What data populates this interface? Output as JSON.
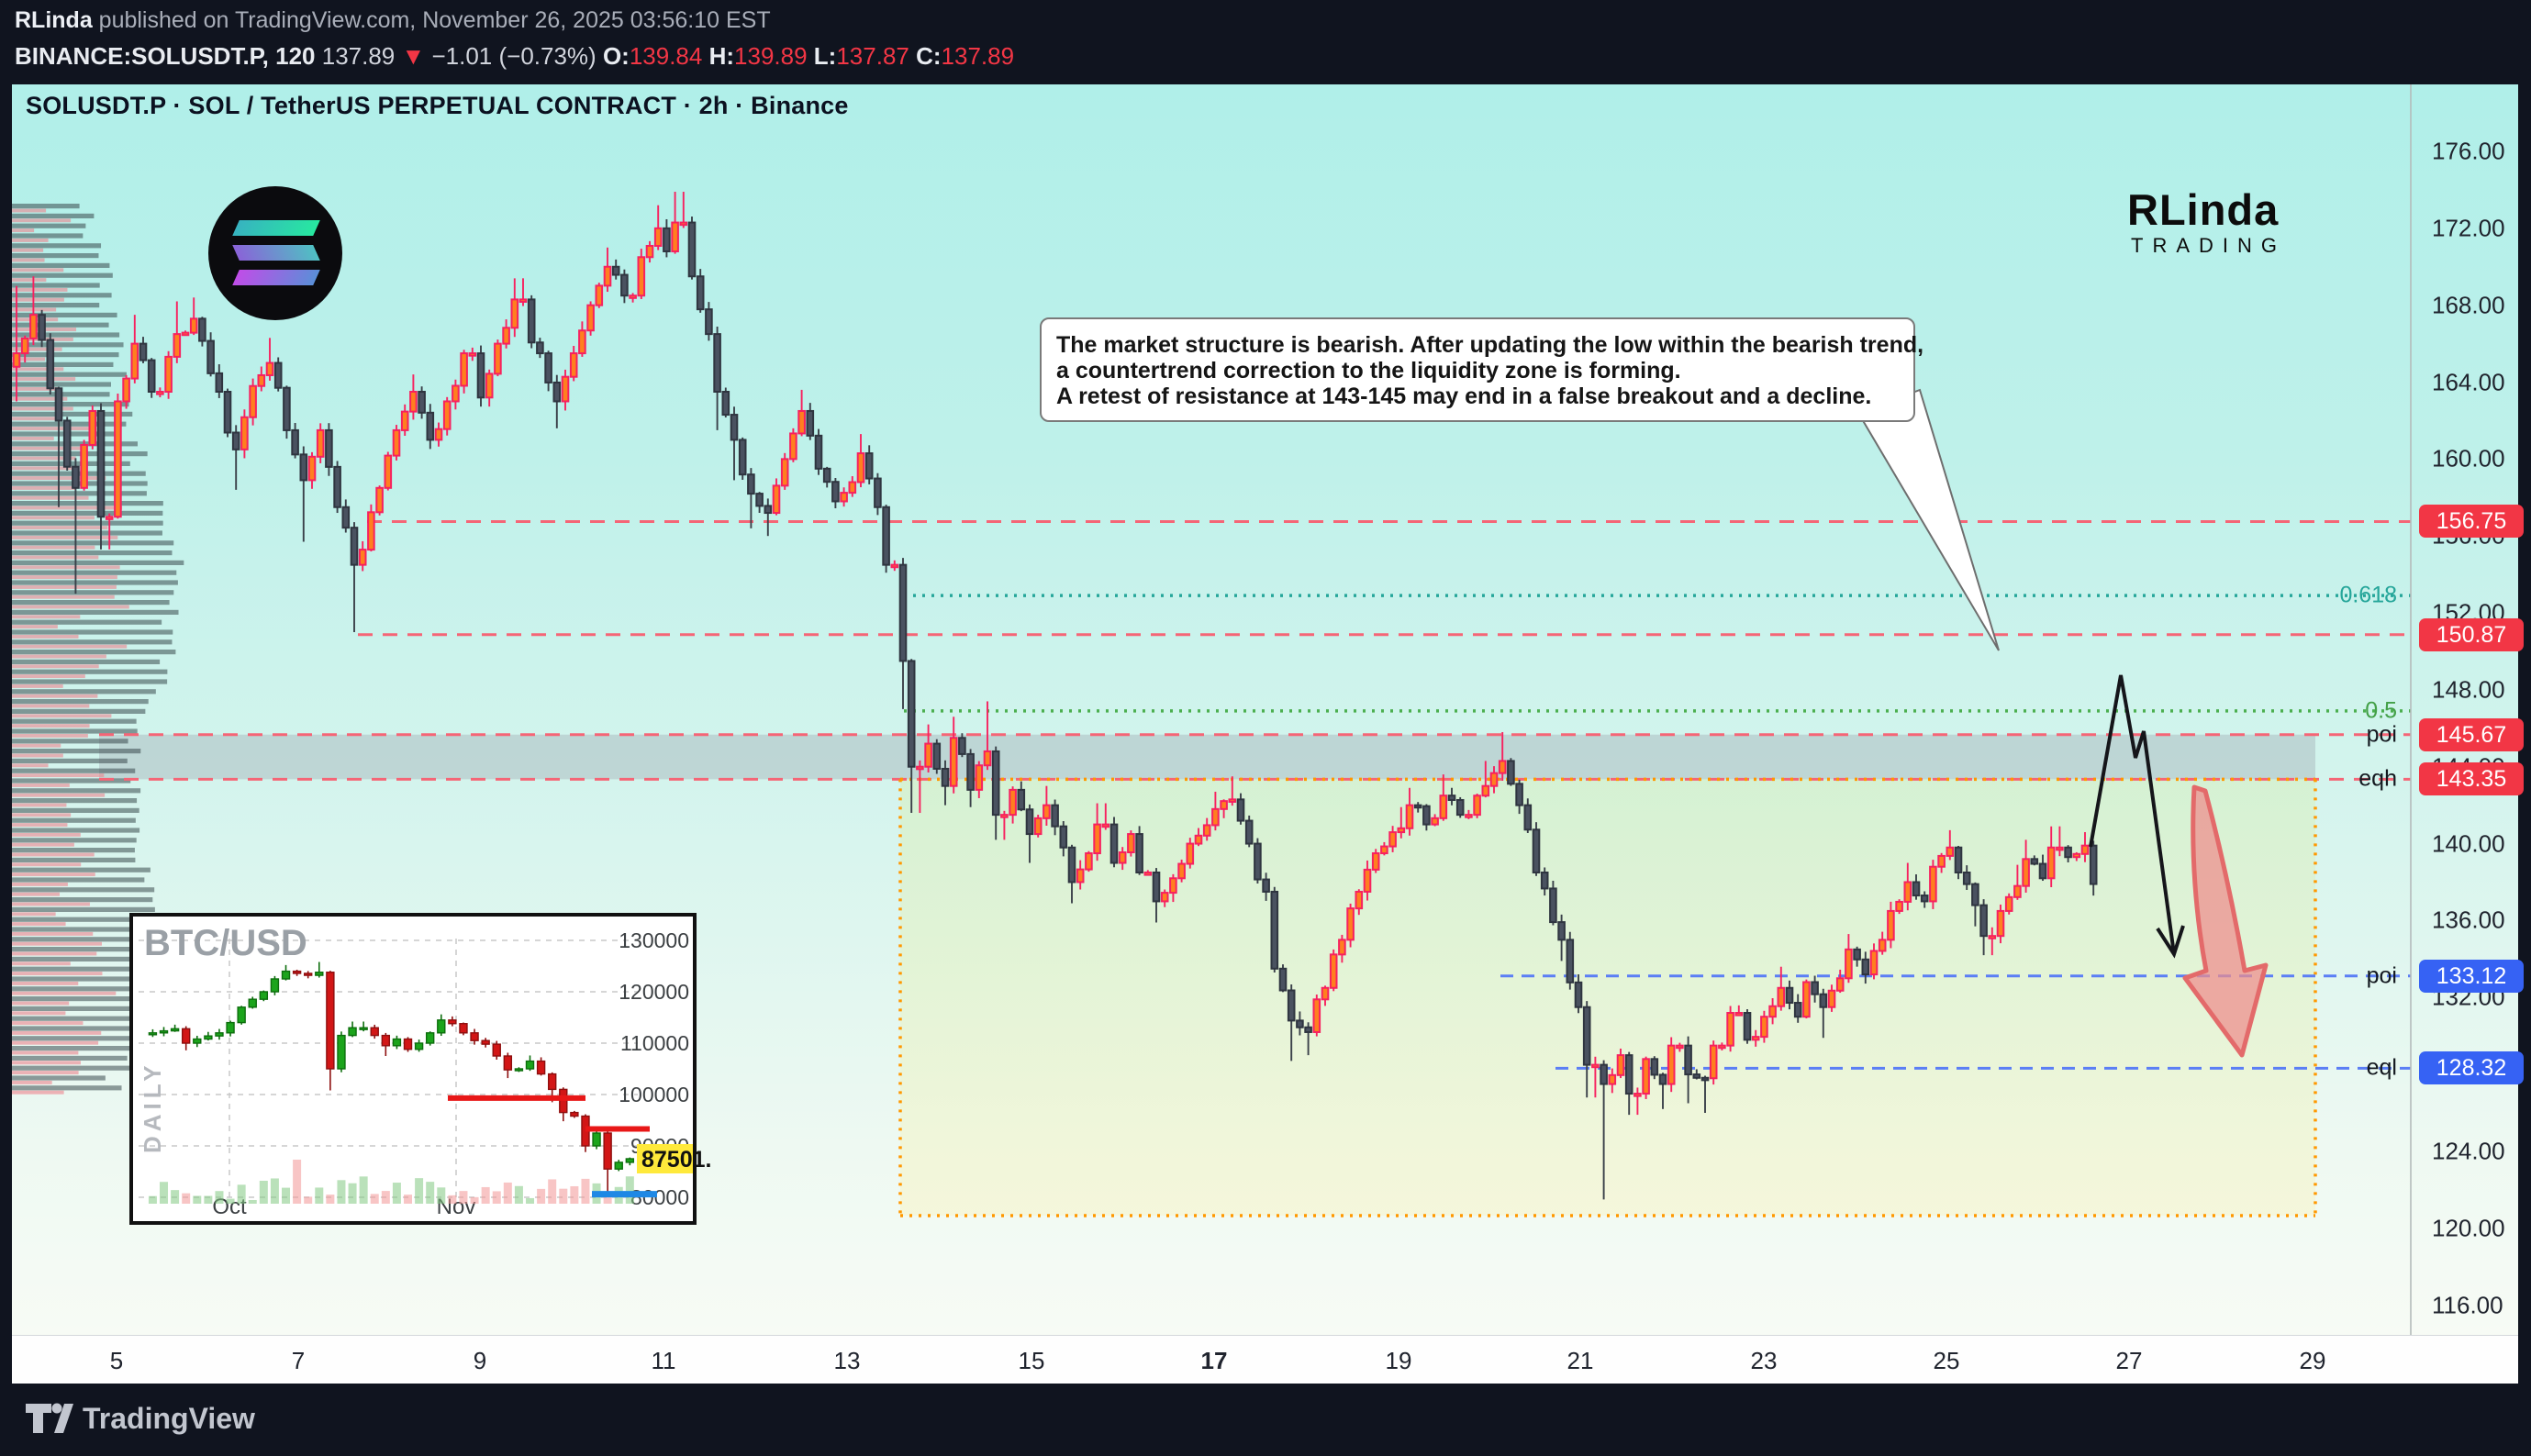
{
  "header": {
    "author": "RLinda",
    "publish_text": " published on TradingView.com, November 26, 2025 03:56:10 EST",
    "symbol": "BINANCE:SOLUSDT.P, 120",
    "last": "137.89",
    "down_arrow": "▼",
    "change": "−1.01 (−0.73%)",
    "o_label": "O:",
    "o": "139.84",
    "h_label": "H:",
    "h": "139.89",
    "l_label": "L:",
    "l": "137.87",
    "c_label": "C:",
    "c": "137.89"
  },
  "chart_title": "SOLUSDT.P · SOL / TetherUS PERPETUAL CONTRACT · 2h · Binance",
  "watermark": {
    "line1": "RLinda",
    "line2": "TRADING"
  },
  "annotation": {
    "line1": "The market structure is bearish. After updating the low within the bearish trend,",
    "line2": "a countertrend correction to the liquidity zone is forming.",
    "line3": "A retest of resistance at 143-145 may end in a false breakout and a decline."
  },
  "footer": {
    "brand": "TradingView"
  },
  "price_axis": {
    "ticks": [
      176,
      172,
      168,
      164,
      160,
      156,
      152,
      148,
      144,
      140,
      136,
      132,
      128,
      124,
      120,
      116
    ],
    "badges": [
      {
        "text": "156.75",
        "price": 156.75,
        "color": "#f23645"
      },
      {
        "text": "150.87",
        "price": 150.87,
        "color": "#f23645"
      },
      {
        "text": "145.67",
        "price": 145.67,
        "color": "#f23645"
      },
      {
        "text": "143.35",
        "price": 143.35,
        "color": "#f23645"
      },
      {
        "text": "133.12",
        "price": 133.12,
        "color": "#3662f4"
      },
      {
        "text": "128.32",
        "price": 128.32,
        "color": "#3662f4"
      }
    ],
    "side_labels": [
      {
        "text": "0.618",
        "price": 152.9,
        "color": "#26a69a"
      },
      {
        "text": "0.5",
        "price": 146.9,
        "color": "#43a047"
      },
      {
        "text": "poi",
        "price": 145.67,
        "color": "#13181f"
      },
      {
        "text": "eqh",
        "price": 143.35,
        "color": "#13181f"
      },
      {
        "text": "poi",
        "price": 133.12,
        "color": "#13181f"
      },
      {
        "text": "eql",
        "price": 128.32,
        "color": "#13181f"
      }
    ]
  },
  "time_axis": {
    "labels": [
      [
        "5",
        127
      ],
      [
        "7",
        325
      ],
      [
        "9",
        523
      ],
      [
        "11",
        723
      ],
      [
        "13",
        923
      ],
      [
        "15",
        1124
      ],
      [
        "17",
        1323
      ],
      [
        "19",
        1524
      ],
      [
        "21",
        1722
      ],
      [
        "23",
        1922
      ],
      [
        "25",
        2121
      ],
      [
        "27",
        2320
      ],
      [
        "29",
        2520
      ]
    ],
    "bold_label": "17"
  },
  "chart_data": {
    "type": "candlestick",
    "symbol": "SOLUSDT.P",
    "exchange": "Binance",
    "timeframe": "2h",
    "title": "SOLUSDT.P · SOL / TetherUS PERPETUAL CONTRACT · 2h · Binance",
    "ylim": [
      113.5,
      177.5
    ],
    "y_ticks": [
      176,
      172,
      168,
      164,
      160,
      156,
      152,
      148,
      144,
      140,
      136,
      132,
      128,
      124,
      120,
      116
    ],
    "x_tick_days": [
      5,
      7,
      9,
      11,
      13,
      15,
      17,
      19,
      21,
      23,
      25,
      27,
      29
    ],
    "last_close": 137.89,
    "levels": [
      {
        "name": "resistance",
        "price": 156.75
      },
      {
        "name": "resistance",
        "price": 150.87
      },
      {
        "name": "fib-0.618",
        "price": 152.9
      },
      {
        "name": "fib-0.5",
        "price": 146.9
      },
      {
        "name": "poi-upper",
        "price": 145.67
      },
      {
        "name": "eqh",
        "price": 143.35
      },
      {
        "name": "poi-lower",
        "price": 133.12
      },
      {
        "name": "eql",
        "price": 128.32
      }
    ],
    "zones": [
      {
        "name": "supply-band",
        "from": 145.67,
        "to": 143.35
      },
      {
        "name": "liquidity-box",
        "from": 143.35,
        "to": 120.7
      }
    ],
    "price_path": [
      [
        18,
        165.5,
        169.0,
        163.0
      ],
      [
        40,
        167.5,
        169.5,
        null
      ],
      [
        60,
        162.0,
        null,
        157.5
      ],
      [
        80,
        158.5,
        null,
        153.0
      ],
      [
        100,
        162.5,
        null,
        null
      ],
      [
        115,
        157.0,
        null,
        155.3
      ],
      [
        130,
        163.0,
        null,
        null
      ],
      [
        150,
        166.0,
        167.5,
        null
      ],
      [
        170,
        163.5,
        null,
        null
      ],
      [
        195,
        166.5,
        168.2,
        null
      ],
      [
        215,
        167.3,
        168.4,
        null
      ],
      [
        235,
        163.5,
        null,
        null
      ],
      [
        255,
        160.5,
        null,
        158.4
      ],
      [
        275,
        163.8,
        null,
        null
      ],
      [
        295,
        165.0,
        166.3,
        null
      ],
      [
        315,
        161.5,
        null,
        null
      ],
      [
        330,
        158.9,
        null,
        155.7
      ],
      [
        350,
        161.5,
        null,
        null
      ],
      [
        370,
        157.5,
        null,
        null
      ],
      [
        390,
        154.5,
        null,
        151.0
      ],
      [
        410,
        158.5,
        null,
        null
      ],
      [
        430,
        161.5,
        null,
        null
      ],
      [
        450,
        163.5,
        164.4,
        null
      ],
      [
        470,
        161.0,
        null,
        null
      ],
      [
        490,
        163.0,
        null,
        null
      ],
      [
        510,
        165.5,
        null,
        null
      ],
      [
        525,
        163.2,
        null,
        null
      ],
      [
        545,
        166.0,
        null,
        null
      ],
      [
        565,
        168.3,
        169.4,
        null
      ],
      [
        585,
        165.5,
        null,
        null
      ],
      [
        605,
        163.0,
        null,
        161.6
      ],
      [
        625,
        165.5,
        null,
        null
      ],
      [
        645,
        168.0,
        null,
        null
      ],
      [
        665,
        170.0,
        171.0,
        null
      ],
      [
        685,
        168.5,
        null,
        null
      ],
      [
        700,
        170.5,
        null,
        null
      ],
      [
        715,
        172.0,
        173.2,
        null
      ],
      [
        728,
        170.8,
        null,
        null
      ],
      [
        740,
        172.3,
        173.9,
        null
      ],
      [
        755,
        169.5,
        null,
        null
      ],
      [
        770,
        166.5,
        null,
        null
      ],
      [
        785,
        163.5,
        null,
        161.5
      ],
      [
        800,
        161.0,
        null,
        158.9
      ],
      [
        815,
        158.2,
        null,
        156.4
      ],
      [
        835,
        157.2,
        null,
        156.0
      ],
      [
        855,
        160.0,
        null,
        null
      ],
      [
        875,
        162.5,
        163.6,
        null
      ],
      [
        895,
        159.5,
        null,
        null
      ],
      [
        912,
        157.8,
        null,
        null
      ],
      [
        926,
        158.8,
        null,
        null
      ],
      [
        940,
        160.3,
        161.3,
        null
      ],
      [
        955,
        157.5,
        null,
        null
      ],
      [
        970,
        154.5,
        null,
        null
      ],
      [
        984,
        149.5,
        null,
        147.0
      ],
      [
        998,
        144.0,
        null,
        141.6
      ],
      [
        1012,
        145.2,
        146.2,
        null
      ],
      [
        1026,
        143.0,
        null,
        142.0
      ],
      [
        1042,
        145.5,
        146.6,
        null
      ],
      [
        1058,
        142.8,
        null,
        141.9
      ],
      [
        1074,
        144.8,
        147.4,
        null
      ],
      [
        1090,
        141.5,
        null,
        140.2
      ],
      [
        1106,
        142.8,
        null,
        null
      ],
      [
        1124,
        140.5,
        null,
        139.0
      ],
      [
        1140,
        142.0,
        143.0,
        null
      ],
      [
        1156,
        139.8,
        null,
        null
      ],
      [
        1170,
        138.0,
        null,
        136.9
      ],
      [
        1186,
        139.5,
        null,
        null
      ],
      [
        1200,
        141.0,
        142.1,
        null
      ],
      [
        1216,
        139.0,
        null,
        null
      ],
      [
        1232,
        140.5,
        null,
        null
      ],
      [
        1246,
        138.5,
        null,
        null
      ],
      [
        1262,
        137.0,
        null,
        135.9
      ],
      [
        1280,
        138.2,
        null,
        null
      ],
      [
        1300,
        140.0,
        null,
        null
      ],
      [
        1323,
        141.8,
        142.7,
        null
      ],
      [
        1344,
        142.3,
        143.5,
        null
      ],
      [
        1360,
        140.0,
        null,
        null
      ],
      [
        1376,
        137.5,
        null,
        null
      ],
      [
        1392,
        133.5,
        null,
        null
      ],
      [
        1406,
        130.8,
        null,
        128.7
      ],
      [
        1422,
        130.2,
        null,
        129.0
      ],
      [
        1440,
        132.5,
        null,
        null
      ],
      [
        1460,
        135.0,
        null,
        null
      ],
      [
        1480,
        137.5,
        null,
        null
      ],
      [
        1500,
        139.5,
        null,
        null
      ],
      [
        1524,
        140.8,
        141.9,
        null
      ],
      [
        1540,
        142.0,
        142.9,
        null
      ],
      [
        1558,
        141.0,
        null,
        null
      ],
      [
        1576,
        142.5,
        143.6,
        null
      ],
      [
        1596,
        141.5,
        null,
        null
      ],
      [
        1616,
        143.0,
        144.3,
        null
      ],
      [
        1638,
        144.3,
        145.8,
        null
      ],
      [
        1658,
        142.0,
        null,
        null
      ],
      [
        1678,
        138.5,
        null,
        null
      ],
      [
        1698,
        135.0,
        null,
        133.9
      ],
      [
        1718,
        131.5,
        null,
        null
      ],
      [
        1734,
        128.5,
        null,
        126.8
      ],
      [
        1750,
        127.5,
        null,
        121.5
      ],
      [
        1766,
        129.0,
        null,
        null
      ],
      [
        1780,
        127.0,
        null,
        125.9
      ],
      [
        1796,
        128.8,
        null,
        null
      ],
      [
        1810,
        127.5,
        null,
        126.2
      ],
      [
        1826,
        129.5,
        null,
        null
      ],
      [
        1840,
        128.0,
        null,
        126.5
      ],
      [
        1856,
        127.8,
        null,
        126.0
      ],
      [
        1872,
        129.5,
        null,
        null
      ],
      [
        1890,
        131.2,
        null,
        null
      ],
      [
        1908,
        129.8,
        null,
        null
      ],
      [
        1924,
        131.0,
        null,
        null
      ],
      [
        1940,
        132.5,
        133.6,
        null
      ],
      [
        1956,
        131.0,
        null,
        null
      ],
      [
        1972,
        132.8,
        null,
        null
      ],
      [
        1986,
        131.5,
        null,
        129.9
      ],
      [
        2002,
        133.0,
        null,
        null
      ],
      [
        2016,
        134.5,
        135.3,
        null
      ],
      [
        2032,
        133.2,
        null,
        null
      ],
      [
        2048,
        135.0,
        null,
        null
      ],
      [
        2064,
        136.5,
        null,
        null
      ],
      [
        2078,
        138.0,
        139.0,
        null
      ],
      [
        2094,
        137.0,
        null,
        null
      ],
      [
        2108,
        138.8,
        null,
        null
      ],
      [
        2122,
        139.8,
        140.7,
        null
      ],
      [
        2136,
        138.5,
        null,
        null
      ],
      [
        2152,
        136.8,
        null,
        135.7
      ],
      [
        2166,
        135.2,
        null,
        134.2
      ],
      [
        2180,
        136.5,
        null,
        null
      ],
      [
        2196,
        137.8,
        138.9,
        null
      ],
      [
        2210,
        139.2,
        140.2,
        null
      ],
      [
        2226,
        138.2,
        null,
        null
      ],
      [
        2240,
        139.8,
        140.9,
        null
      ],
      [
        2256,
        139.3,
        null,
        null
      ],
      [
        2270,
        139.9,
        140.6,
        null
      ],
      [
        2285,
        137.9,
        null,
        137.3
      ]
    ]
  },
  "inset": {
    "title": "BTC/USD",
    "watermark": "DAILY",
    "x_labels": [
      "Oct",
      "Nov"
    ],
    "y_ticks": [
      130000,
      120000,
      110000,
      100000,
      90000,
      80000
    ],
    "price_label": "87501.",
    "chart_data": {
      "type": "candlestick",
      "timeframe": "daily",
      "support_lines": [
        99300,
        93300
      ],
      "breakdown_line": 80600,
      "price_path": [
        [
          0.02,
          112000,
          null,
          null
        ],
        [
          0.05,
          112800,
          113600,
          null
        ],
        [
          0.08,
          110000,
          null,
          108600
        ],
        [
          0.11,
          110800,
          null,
          null
        ],
        [
          0.14,
          112000,
          null,
          null
        ],
        [
          0.17,
          114000,
          null,
          null
        ],
        [
          0.2,
          117000,
          null,
          null
        ],
        [
          0.23,
          120000,
          null,
          null
        ],
        [
          0.26,
          122500,
          null,
          null
        ],
        [
          0.29,
          124000,
          125200,
          null
        ],
        [
          0.32,
          123200,
          null,
          null
        ],
        [
          0.345,
          123800,
          125800,
          null
        ],
        [
          0.365,
          122000,
          null,
          null
        ],
        [
          0.385,
          105000,
          null,
          100800
        ],
        [
          0.405,
          111500,
          null,
          null
        ],
        [
          0.43,
          113000,
          114200,
          null
        ],
        [
          0.455,
          111500,
          null,
          null
        ],
        [
          0.48,
          109500,
          null,
          107500
        ],
        [
          0.505,
          110800,
          null,
          null
        ],
        [
          0.53,
          108800,
          null,
          null
        ],
        [
          0.55,
          110000,
          null,
          null
        ],
        [
          0.575,
          112000,
          null,
          null
        ],
        [
          0.6,
          114500,
          115600,
          null
        ],
        [
          0.625,
          113800,
          null,
          null
        ],
        [
          0.65,
          112000,
          null,
          null
        ],
        [
          0.675,
          110500,
          null,
          null
        ],
        [
          0.7,
          109800,
          null,
          null
        ],
        [
          0.72,
          107500,
          null,
          null
        ],
        [
          0.74,
          104800,
          null,
          103200
        ],
        [
          0.76,
          105000,
          null,
          null
        ],
        [
          0.78,
          106500,
          107600,
          null
        ],
        [
          0.8,
          104000,
          null,
          null
        ],
        [
          0.82,
          101000,
          null,
          98500
        ],
        [
          0.845,
          96500,
          null,
          94800
        ],
        [
          0.865,
          95800,
          null,
          null
        ],
        [
          0.885,
          93000,
          null,
          91500
        ],
        [
          0.9,
          90000,
          null,
          88800
        ],
        [
          0.915,
          92500,
          93600,
          null
        ],
        [
          0.93,
          88000,
          null,
          84500
        ],
        [
          0.945,
          85500,
          null,
          80800
        ],
        [
          0.96,
          86800,
          null,
          null
        ],
        [
          0.975,
          87300,
          88200,
          null
        ],
        [
          0.99,
          87500,
          null,
          null
        ]
      ]
    }
  }
}
